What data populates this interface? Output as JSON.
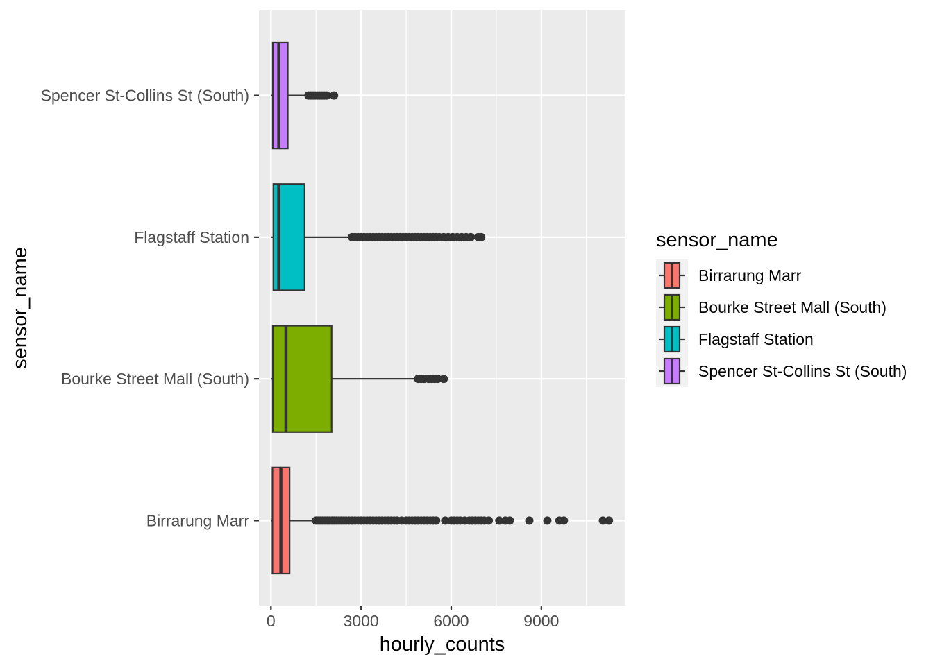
{
  "chart_data": {
    "type": "boxplot",
    "orientation": "horizontal",
    "xlabel": "hourly_counts",
    "ylabel": "sensor_name",
    "xlim": [
      -400,
      11800
    ],
    "xticks": [
      0,
      3000,
      6000,
      9000
    ],
    "x_tick_labels": [
      "0",
      "3000",
      "6000",
      "9000"
    ],
    "grid": true,
    "legend": {
      "title": "sensor_name",
      "placement": "right",
      "entries": [
        "Birrarung Marr",
        "Bourke Street Mall (South)",
        "Flagstaff Station",
        "Spencer St-Collins St (South)"
      ]
    },
    "categories": [
      "Birrarung Marr",
      "Bourke Street Mall (South)",
      "Flagstaff Station",
      "Spencer St-Collins St (South)"
    ],
    "series": [
      {
        "name": "Birrarung Marr",
        "color": "#F8766D",
        "min": 0,
        "q1": 50,
        "median": 330,
        "q3": 620,
        "whisker_high": 1470,
        "outliers": [
          1500,
          1580,
          1650,
          1720,
          1800,
          1880,
          1950,
          2030,
          2100,
          2180,
          2260,
          2340,
          2420,
          2500,
          2600,
          2700,
          2800,
          2900,
          3000,
          3100,
          3200,
          3300,
          3400,
          3500,
          3600,
          3700,
          3800,
          3900,
          4000,
          4100,
          4200,
          4350,
          4500,
          4600,
          4700,
          4800,
          4900,
          5000,
          5100,
          5200,
          5300,
          5400,
          5500,
          5800,
          6000,
          6100,
          6200,
          6300,
          6450,
          6600,
          6700,
          6800,
          6900,
          7000,
          7100,
          7250,
          7600,
          7800,
          7950,
          8600,
          9200,
          9600,
          9750,
          11050,
          11250
        ]
      },
      {
        "name": "Bourke Street Mall (South)",
        "color": "#7CAE00",
        "min": 0,
        "q1": 60,
        "median": 500,
        "q3": 2020,
        "whisker_high": 4850,
        "outliers": [
          4900,
          5000,
          5100,
          5250,
          5350,
          5450,
          5550,
          5750
        ]
      },
      {
        "name": "Flagstaff Station",
        "color": "#00BFC4",
        "min": 0,
        "q1": 80,
        "median": 260,
        "q3": 1120,
        "whisker_high": 2650,
        "outliers": [
          2700,
          2800,
          2900,
          3000,
          3100,
          3200,
          3300,
          3400,
          3500,
          3600,
          3700,
          3800,
          3900,
          4000,
          4100,
          4200,
          4300,
          4400,
          4500,
          4600,
          4700,
          4800,
          4900,
          5000,
          5100,
          5200,
          5300,
          5400,
          5500,
          5600,
          5750,
          5900,
          6050,
          6200,
          6350,
          6500,
          6650,
          6900,
          7000
        ]
      },
      {
        "name": "Spencer St-Collins St (South)",
        "color": "#C77CFF",
        "min": 0,
        "q1": 60,
        "median": 260,
        "q3": 560,
        "whisker_high": 1180,
        "outliers": [
          1250,
          1330,
          1400,
          1470,
          1550,
          1620,
          1700,
          1780,
          1850,
          2100
        ]
      }
    ]
  }
}
